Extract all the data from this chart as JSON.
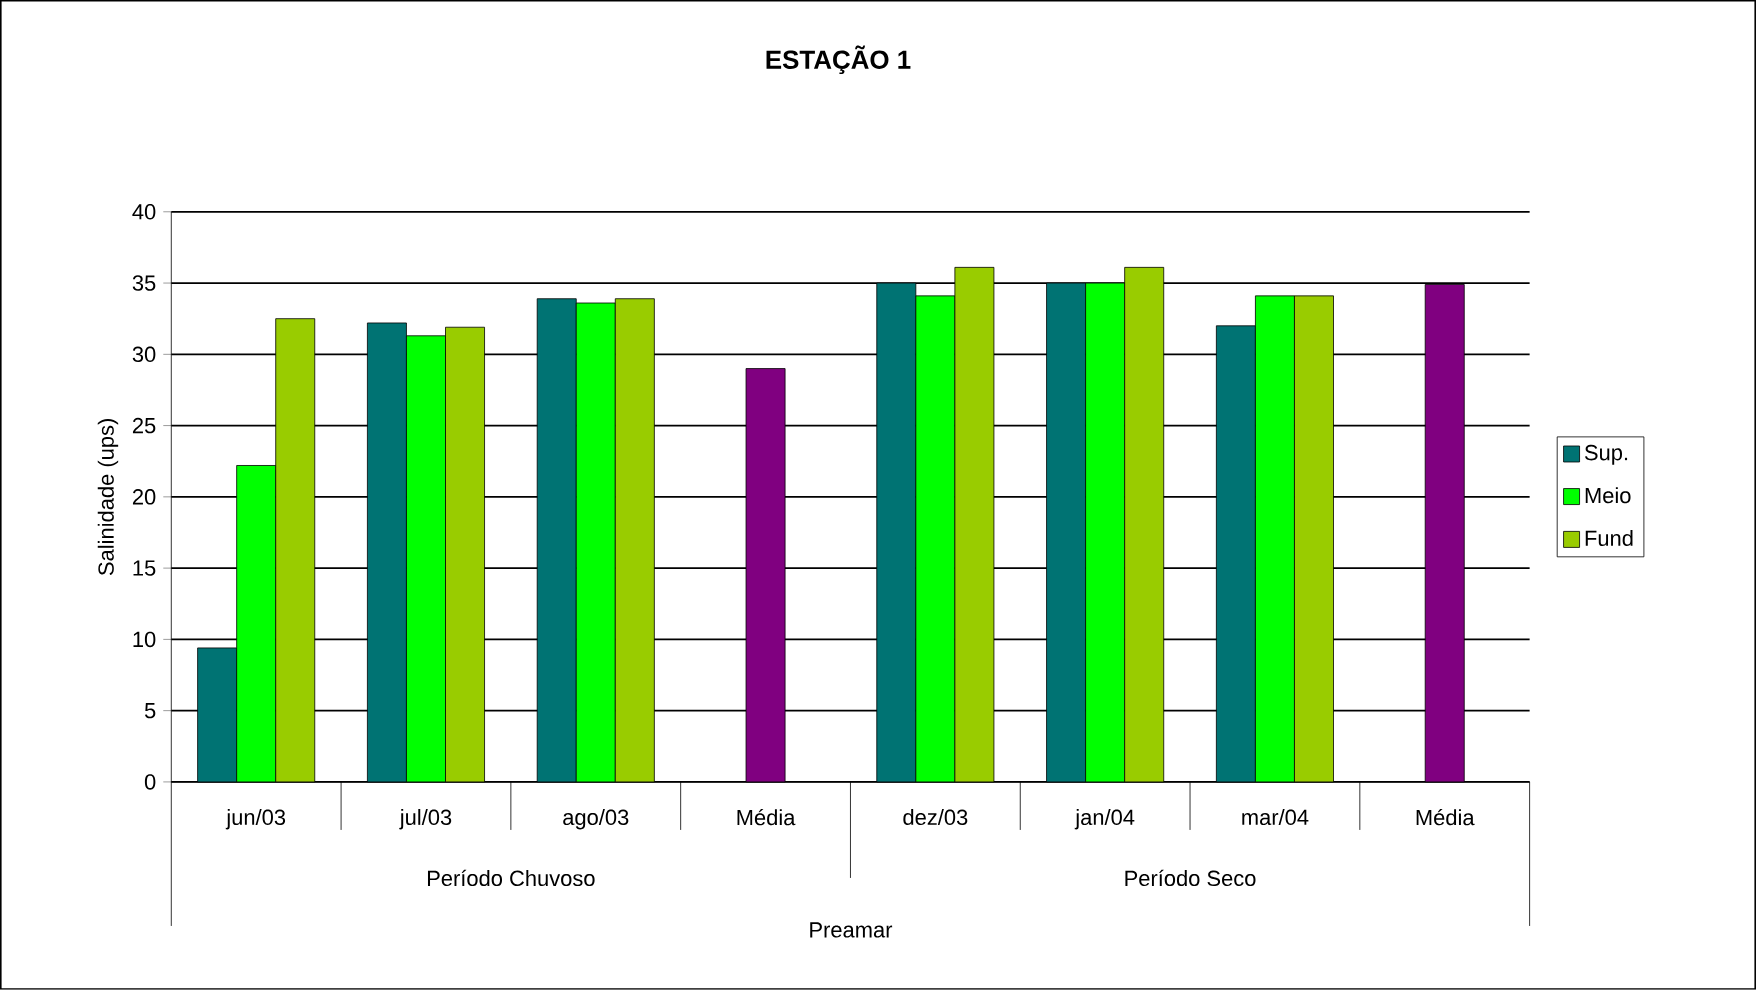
{
  "chart_data": {
    "type": "bar",
    "title": "ESTAÇÃO 1",
    "ylabel": "Salinidade (ups)",
    "categories": [
      "jun/03",
      "jul/03",
      "ago/03",
      "Média",
      "dez/03",
      "jan/04",
      "mar/04",
      "Média"
    ],
    "series": [
      {
        "name": "Sup.",
        "color": "#007373",
        "values": [
          9.4,
          32.2,
          33.9,
          null,
          35.0,
          35.0,
          32.0,
          null
        ]
      },
      {
        "name": "Meio",
        "color": "#00ff00",
        "values": [
          22.2,
          31.3,
          33.6,
          null,
          34.1,
          35.0,
          34.1,
          null
        ]
      },
      {
        "name": "Fund",
        "color": "#99cc00",
        "values": [
          32.5,
          31.9,
          33.9,
          null,
          36.1,
          36.1,
          34.1,
          null
        ]
      },
      {
        "color": "#800080",
        "values": [
          null,
          null,
          null,
          29.0,
          null,
          null,
          null,
          34.9
        ]
      }
    ],
    "ylim": [
      0,
      40
    ],
    "yticks": [
      0,
      5,
      10,
      15,
      20,
      25,
      30,
      35,
      40
    ],
    "grid": "y",
    "legend": "right",
    "annotations": [
      "Período Chuvoso",
      "Período Seco",
      "Preamar"
    ]
  }
}
